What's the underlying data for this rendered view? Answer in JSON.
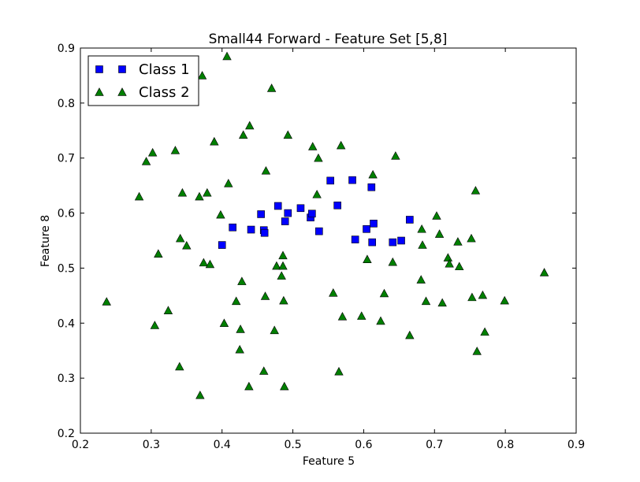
{
  "chart_data": {
    "type": "scatter",
    "title": "Small44 Forward - Feature Set [5,8]",
    "xlabel": "Feature 5",
    "ylabel": "Feature 8",
    "xlim": [
      0.2,
      0.9
    ],
    "ylim": [
      0.2,
      0.9
    ],
    "xticks": [
      0.2,
      0.3,
      0.4,
      0.5,
      0.6,
      0.7,
      0.8,
      0.9
    ],
    "yticks": [
      0.2,
      0.3,
      0.4,
      0.5,
      0.6,
      0.7,
      0.8,
      0.9
    ],
    "xtick_labels": [
      "0.2",
      "0.3",
      "0.4",
      "0.5",
      "0.6",
      "0.7",
      "0.8",
      "0.9"
    ],
    "ytick_labels": [
      "0.2",
      "0.3",
      "0.4",
      "0.5",
      "0.6",
      "0.7",
      "0.8",
      "0.9"
    ],
    "grid": false,
    "legend_position": "top-left",
    "series": [
      {
        "name": "Class 1",
        "marker": "square",
        "color": "#0000ff",
        "x": [
          0.4,
          0.415,
          0.441,
          0.455,
          0.459,
          0.46,
          0.479,
          0.489,
          0.493,
          0.511,
          0.525,
          0.527,
          0.537,
          0.553,
          0.563,
          0.584,
          0.588,
          0.604,
          0.611,
          0.612,
          0.614,
          0.641,
          0.653,
          0.665
        ],
        "y": [
          0.542,
          0.574,
          0.57,
          0.598,
          0.569,
          0.564,
          0.613,
          0.585,
          0.6,
          0.609,
          0.592,
          0.599,
          0.567,
          0.659,
          0.614,
          0.66,
          0.552,
          0.571,
          0.647,
          0.547,
          0.581,
          0.547,
          0.55,
          0.588
        ]
      },
      {
        "name": "Class 2",
        "marker": "triangle",
        "color": "#007f00",
        "x": [
          0.237,
          0.283,
          0.293,
          0.302,
          0.305,
          0.31,
          0.324,
          0.334,
          0.34,
          0.341,
          0.344,
          0.35,
          0.368,
          0.369,
          0.372,
          0.374,
          0.379,
          0.383,
          0.389,
          0.398,
          0.403,
          0.407,
          0.409,
          0.42,
          0.425,
          0.426,
          0.428,
          0.43,
          0.438,
          0.439,
          0.459,
          0.461,
          0.462,
          0.47,
          0.474,
          0.477,
          0.484,
          0.486,
          0.486,
          0.487,
          0.488,
          0.493,
          0.528,
          0.534,
          0.536,
          0.557,
          0.565,
          0.568,
          0.57,
          0.597,
          0.605,
          0.613,
          0.624,
          0.629,
          0.641,
          0.645,
          0.665,
          0.681,
          0.682,
          0.683,
          0.688,
          0.703,
          0.707,
          0.711,
          0.719,
          0.721,
          0.733,
          0.735,
          0.752,
          0.753,
          0.758,
          0.76,
          0.768,
          0.771,
          0.799,
          0.855
        ],
        "y": [
          0.439,
          0.63,
          0.694,
          0.71,
          0.396,
          0.526,
          0.423,
          0.714,
          0.321,
          0.554,
          0.637,
          0.541,
          0.63,
          0.269,
          0.85,
          0.51,
          0.637,
          0.507,
          0.73,
          0.597,
          0.4,
          0.885,
          0.654,
          0.44,
          0.352,
          0.389,
          0.476,
          0.742,
          0.285,
          0.759,
          0.313,
          0.449,
          0.677,
          0.827,
          0.387,
          0.504,
          0.486,
          0.523,
          0.504,
          0.441,
          0.285,
          0.742,
          0.721,
          0.634,
          0.7,
          0.455,
          0.312,
          0.723,
          0.412,
          0.413,
          0.516,
          0.67,
          0.404,
          0.454,
          0.511,
          0.704,
          0.378,
          0.479,
          0.571,
          0.542,
          0.44,
          0.595,
          0.562,
          0.437,
          0.519,
          0.508,
          0.548,
          0.503,
          0.554,
          0.447,
          0.641,
          0.349,
          0.451,
          0.384,
          0.441,
          0.492
        ]
      }
    ]
  }
}
